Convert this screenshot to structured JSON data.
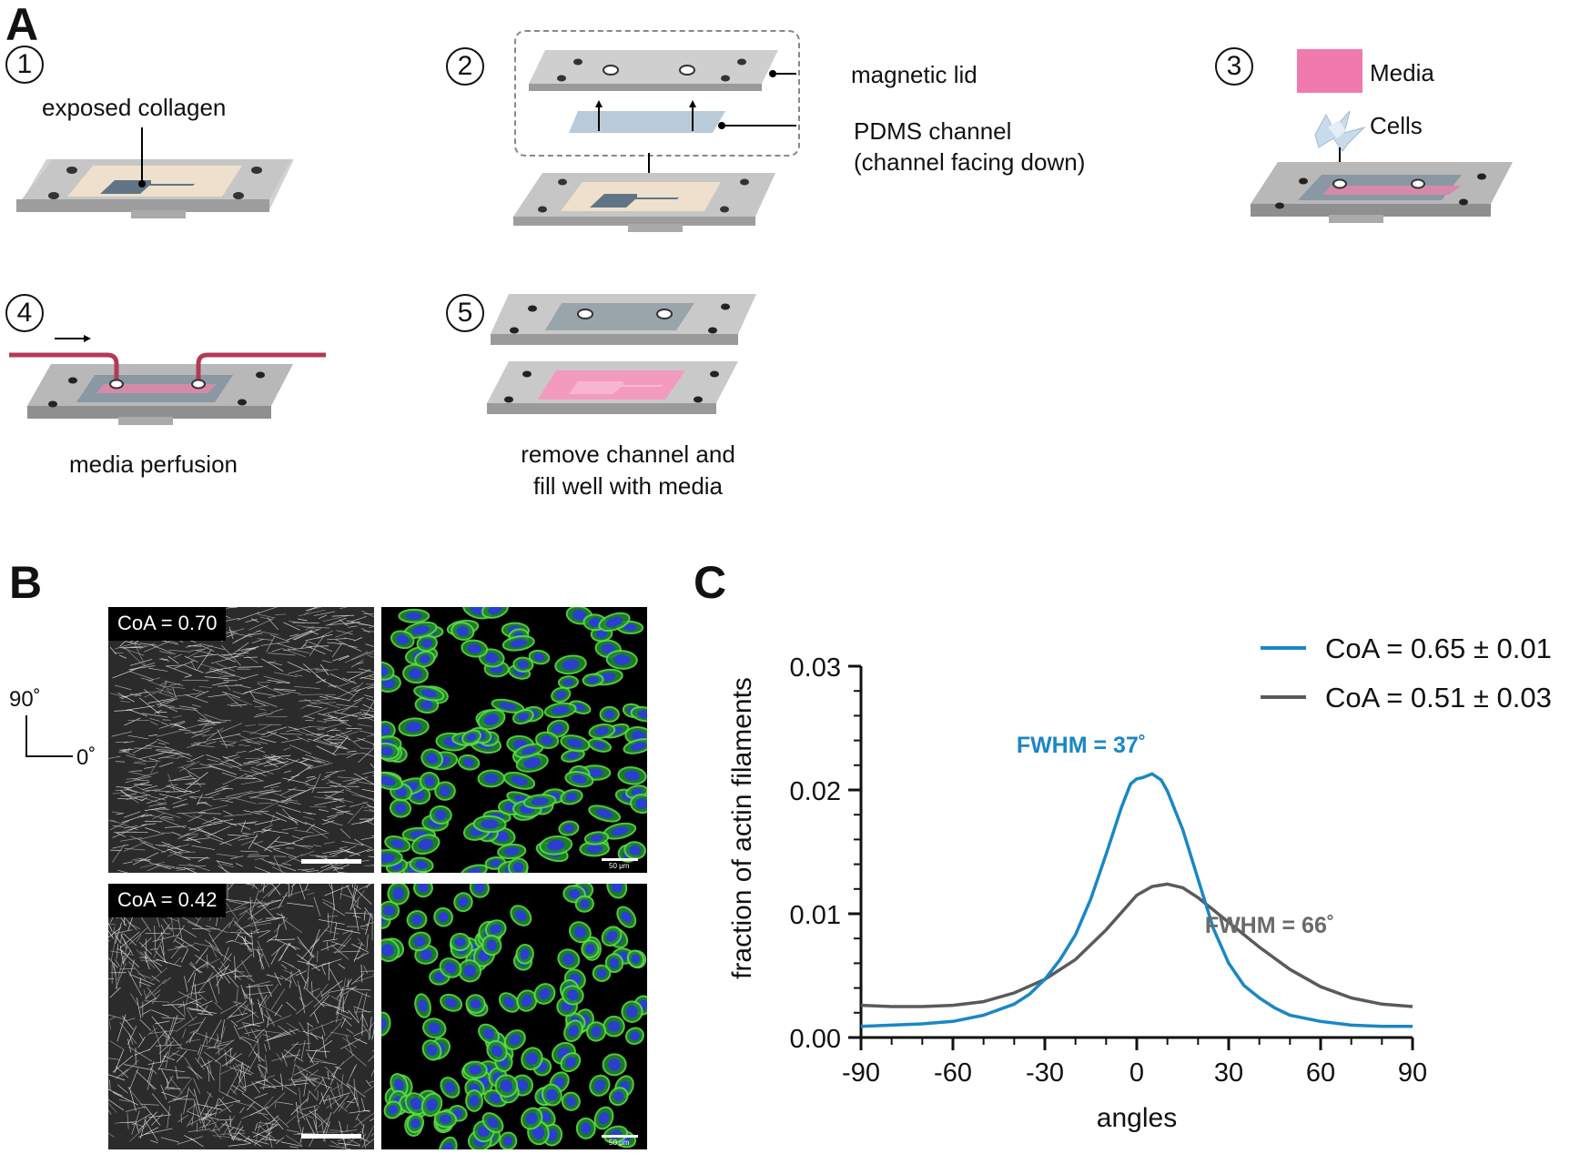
{
  "panelA": {
    "letter": "A",
    "steps": [
      {
        "num": "1",
        "label": "exposed collagen"
      },
      {
        "num": "2",
        "labels": [
          "magnetic lid",
          "PDMS channel",
          "(channel facing down)"
        ]
      },
      {
        "num": "3",
        "legend": [
          "Media",
          "Cells"
        ]
      },
      {
        "num": "4",
        "label": "media perfusion"
      },
      {
        "num": "5",
        "label_lines": [
          "remove channel and",
          "fill well with media"
        ]
      }
    ],
    "colors": {
      "collagen": "#eee0cc",
      "channel": "#5f7585",
      "media": "#f07aad",
      "tube": "#b23a54",
      "pdms": "#b9cbd8"
    }
  },
  "panelB": {
    "letter": "B",
    "axis_labels": [
      "90˚",
      "0˚"
    ],
    "images": [
      {
        "badge": "CoA = 0.70"
      },
      {
        "badge": "CoA = 0.42"
      }
    ],
    "scale_text": "50 μm"
  },
  "panelC": {
    "letter": "C",
    "chart_data": {
      "type": "line",
      "xlabel": "angles",
      "ylabel": "fraction of actin filaments",
      "xlim": [
        -90,
        90
      ],
      "ylim": [
        0,
        0.03
      ],
      "xticks": [
        "-90",
        "-60",
        "-30",
        "0",
        "30",
        "60",
        "90"
      ],
      "yticks": [
        "0.00",
        "0.01",
        "0.02",
        "0.03"
      ],
      "legend_position": "top-right",
      "series": [
        {
          "name": "CoA = 0.65 ± 0.01",
          "color": "#1a87c4",
          "annotation": "FWHM = 37˚",
          "x": [
            -90,
            -80,
            -70,
            -60,
            -50,
            -40,
            -35,
            -30,
            -25,
            -20,
            -15,
            -10,
            -5,
            -2,
            0,
            2,
            5,
            8,
            10,
            15,
            20,
            25,
            30,
            35,
            40,
            45,
            50,
            60,
            70,
            80,
            90
          ],
          "y": [
            0.0009,
            0.001,
            0.0011,
            0.0013,
            0.0018,
            0.0027,
            0.0035,
            0.0047,
            0.0063,
            0.0083,
            0.0112,
            0.0148,
            0.0186,
            0.0205,
            0.0209,
            0.021,
            0.0213,
            0.0208,
            0.0199,
            0.0168,
            0.0128,
            0.0088,
            0.006,
            0.0042,
            0.0032,
            0.0024,
            0.0018,
            0.0013,
            0.001,
            0.0009,
            0.0009
          ]
        },
        {
          "name": "CoA = 0.51 ± 0.03",
          "color": "#5a5a5a",
          "annotation": "FWHM = 66˚",
          "x": [
            -90,
            -80,
            -70,
            -60,
            -50,
            -40,
            -30,
            -20,
            -10,
            0,
            5,
            10,
            15,
            20,
            25,
            30,
            40,
            50,
            60,
            70,
            80,
            90
          ],
          "y": [
            0.0026,
            0.0025,
            0.0025,
            0.0026,
            0.0029,
            0.0036,
            0.0047,
            0.0063,
            0.0087,
            0.0115,
            0.0122,
            0.0124,
            0.0121,
            0.0113,
            0.0103,
            0.0093,
            0.0073,
            0.0055,
            0.0041,
            0.0032,
            0.0027,
            0.0025
          ]
        }
      ]
    }
  }
}
